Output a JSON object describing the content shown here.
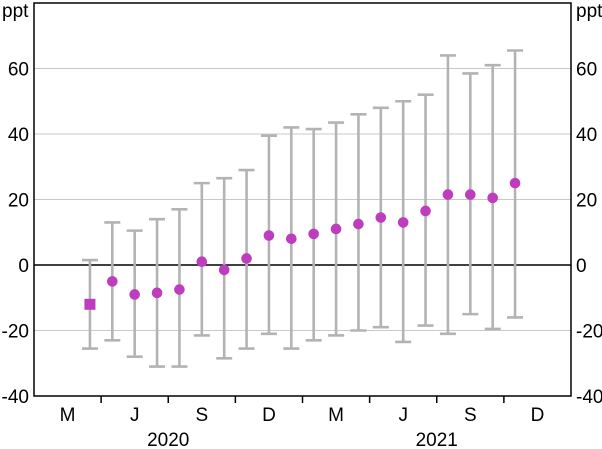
{
  "chart_data": {
    "type": "scatter",
    "title": "",
    "unit_label_left": "ppt",
    "unit_label_right": "ppt",
    "ylim": [
      -40,
      80
    ],
    "yticks": [
      60,
      40,
      20,
      0,
      -20,
      -40
    ],
    "grid": true,
    "x_months_total": 24,
    "x_quarter_tick_boundaries": [
      3,
      6,
      9,
      12,
      15,
      18,
      21
    ],
    "x_month_labels": [
      {
        "label": "M",
        "i": 1
      },
      {
        "label": "J",
        "i": 4
      },
      {
        "label": "S",
        "i": 7
      },
      {
        "label": "D",
        "i": 10
      },
      {
        "label": "M",
        "i": 13
      },
      {
        "label": "J",
        "i": 16
      },
      {
        "label": "S",
        "i": 19
      },
      {
        "label": "D",
        "i": 22
      }
    ],
    "x_year_labels": [
      {
        "label": "2020",
        "center_boundary": 6
      },
      {
        "label": "2021",
        "center_boundary": 18
      }
    ],
    "series": [
      {
        "name": "central-estimate-with-interval",
        "points": [
          {
            "month": "Apr 2020",
            "i": 2,
            "value": -12,
            "low": -25.5,
            "high": 1.5,
            "marker": "square"
          },
          {
            "month": "May 2020",
            "i": 3,
            "value": -5,
            "low": -23,
            "high": 13,
            "marker": "circle"
          },
          {
            "month": "Jun 2020",
            "i": 4,
            "value": -9,
            "low": -28,
            "high": 10.5,
            "marker": "circle"
          },
          {
            "month": "Jul 2020",
            "i": 5,
            "value": -8.5,
            "low": -31,
            "high": 14,
            "marker": "circle"
          },
          {
            "month": "Aug 2020",
            "i": 6,
            "value": -7.5,
            "low": -31,
            "high": 17,
            "marker": "circle"
          },
          {
            "month": "Sep 2020",
            "i": 7,
            "value": 1,
            "low": -21.5,
            "high": 25,
            "marker": "circle"
          },
          {
            "month": "Oct 2020",
            "i": 8,
            "value": -1.5,
            "low": -28.5,
            "high": 26.5,
            "marker": "circle"
          },
          {
            "month": "Nov 2020",
            "i": 9,
            "value": 2,
            "low": -25.5,
            "high": 29,
            "marker": "circle"
          },
          {
            "month": "Dec 2020",
            "i": 10,
            "value": 9,
            "low": -21,
            "high": 39.5,
            "marker": "circle"
          },
          {
            "month": "Jan 2021",
            "i": 11,
            "value": 8,
            "low": -25.5,
            "high": 42,
            "marker": "circle"
          },
          {
            "month": "Feb 2021",
            "i": 12,
            "value": 9.5,
            "low": -23,
            "high": 41.5,
            "marker": "circle"
          },
          {
            "month": "Mar 2021",
            "i": 13,
            "value": 11,
            "low": -21.5,
            "high": 43.5,
            "marker": "circle"
          },
          {
            "month": "Apr 2021",
            "i": 14,
            "value": 12.5,
            "low": -20,
            "high": 46,
            "marker": "circle"
          },
          {
            "month": "May 2021",
            "i": 15,
            "value": 14.5,
            "low": -19,
            "high": 48,
            "marker": "circle"
          },
          {
            "month": "Jun 2021",
            "i": 16,
            "value": 13,
            "low": -23.5,
            "high": 50,
            "marker": "circle"
          },
          {
            "month": "Jul 2021",
            "i": 17,
            "value": 16.5,
            "low": -18.5,
            "high": 52,
            "marker": "circle"
          },
          {
            "month": "Aug 2021",
            "i": 18,
            "value": 21.5,
            "low": -21,
            "high": 64,
            "marker": "circle"
          },
          {
            "month": "Sep 2021",
            "i": 19,
            "value": 21.5,
            "low": -15,
            "high": 58.5,
            "marker": "circle"
          },
          {
            "month": "Oct 2021",
            "i": 20,
            "value": 20.5,
            "low": -19.5,
            "high": 61,
            "marker": "circle"
          },
          {
            "month": "Nov 2021",
            "i": 21,
            "value": 25,
            "low": -16,
            "high": 65.5,
            "marker": "circle"
          }
        ]
      }
    ],
    "colors": {
      "marker": "#be3cbe",
      "interval": "#b3b3b3",
      "grid": "#c9c9c9",
      "axis": "#000000"
    }
  }
}
